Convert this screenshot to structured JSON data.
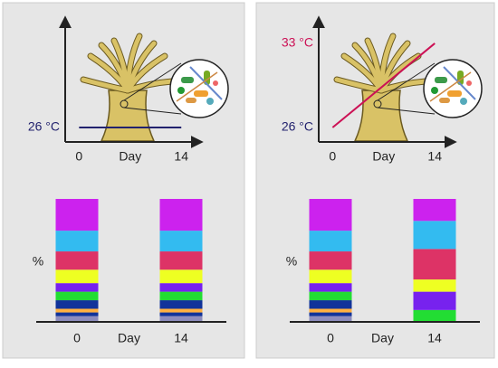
{
  "chart_data": [
    {
      "type": "line",
      "x": [
        0,
        14
      ],
      "values": [
        26,
        26
      ],
      "color": "#22226e",
      "xlim": [
        -1.9,
        16.7
      ],
      "ylim": [
        24.8,
        35.1
      ],
      "xticks": [
        0,
        14
      ],
      "xlabel": "Day",
      "yticks": [
        {
          "value": 26,
          "label": "26 °C"
        }
      ],
      "ytick_colors": [
        "#22226e"
      ]
    },
    {
      "type": "stacked_bar",
      "categories": [
        "0",
        "14"
      ],
      "xlabel": "Day",
      "ylabel": "%",
      "ylim": [
        0,
        100
      ],
      "series": [
        {
          "color": "#8c8cbd",
          "values": [
            4,
            4
          ]
        },
        {
          "color": "#11339a",
          "values": [
            3,
            3
          ]
        },
        {
          "color": "#ffb040",
          "values": [
            3,
            3
          ]
        },
        {
          "color": "#11339a",
          "values": [
            7,
            7
          ]
        },
        {
          "color": "#22dd33",
          "values": [
            7,
            7
          ]
        },
        {
          "color": "#7722ee",
          "values": [
            7,
            7
          ]
        },
        {
          "color": "#eeff22",
          "values": [
            11,
            11
          ]
        },
        {
          "color": "#dd3366",
          "values": [
            15,
            15
          ]
        },
        {
          "color": "#33bbf0",
          "values": [
            17,
            17
          ]
        },
        {
          "color": "#cc22ee",
          "values": [
            26,
            26
          ]
        }
      ]
    },
    {
      "type": "line",
      "x": [
        0,
        14
      ],
      "values": [
        26,
        33
      ],
      "color": "#cc1155",
      "xlim": [
        -1.9,
        16.7
      ],
      "ylim": [
        24.8,
        35.1
      ],
      "xticks": [
        0,
        14
      ],
      "xlabel": "Day",
      "yticks": [
        {
          "value": 26,
          "label": "26 °C"
        },
        {
          "value": 33,
          "label": "33 °C"
        }
      ],
      "ytick_colors": [
        "#22226e",
        "#cc1155"
      ]
    },
    {
      "type": "stacked_bar",
      "categories": [
        "0",
        "14"
      ],
      "xlabel": "Day",
      "ylabel": "%",
      "ylim": [
        0,
        100
      ],
      "series": [
        {
          "color": "#8c8cbd",
          "values": [
            4,
            0
          ]
        },
        {
          "color": "#11339a",
          "values": [
            3,
            0
          ]
        },
        {
          "color": "#ffb040",
          "values": [
            3,
            0
          ]
        },
        {
          "color": "#11339a",
          "values": [
            7,
            0
          ]
        },
        {
          "color": "#22dd33",
          "values": [
            7,
            9
          ]
        },
        {
          "color": "#7722ee",
          "values": [
            7,
            15
          ]
        },
        {
          "color": "#eeff22",
          "values": [
            11,
            10
          ]
        },
        {
          "color": "#dd3366",
          "values": [
            15,
            25
          ]
        },
        {
          "color": "#33bbf0",
          "values": [
            17,
            23
          ]
        },
        {
          "color": "#cc22ee",
          "values": [
            26,
            18
          ]
        }
      ]
    }
  ]
}
